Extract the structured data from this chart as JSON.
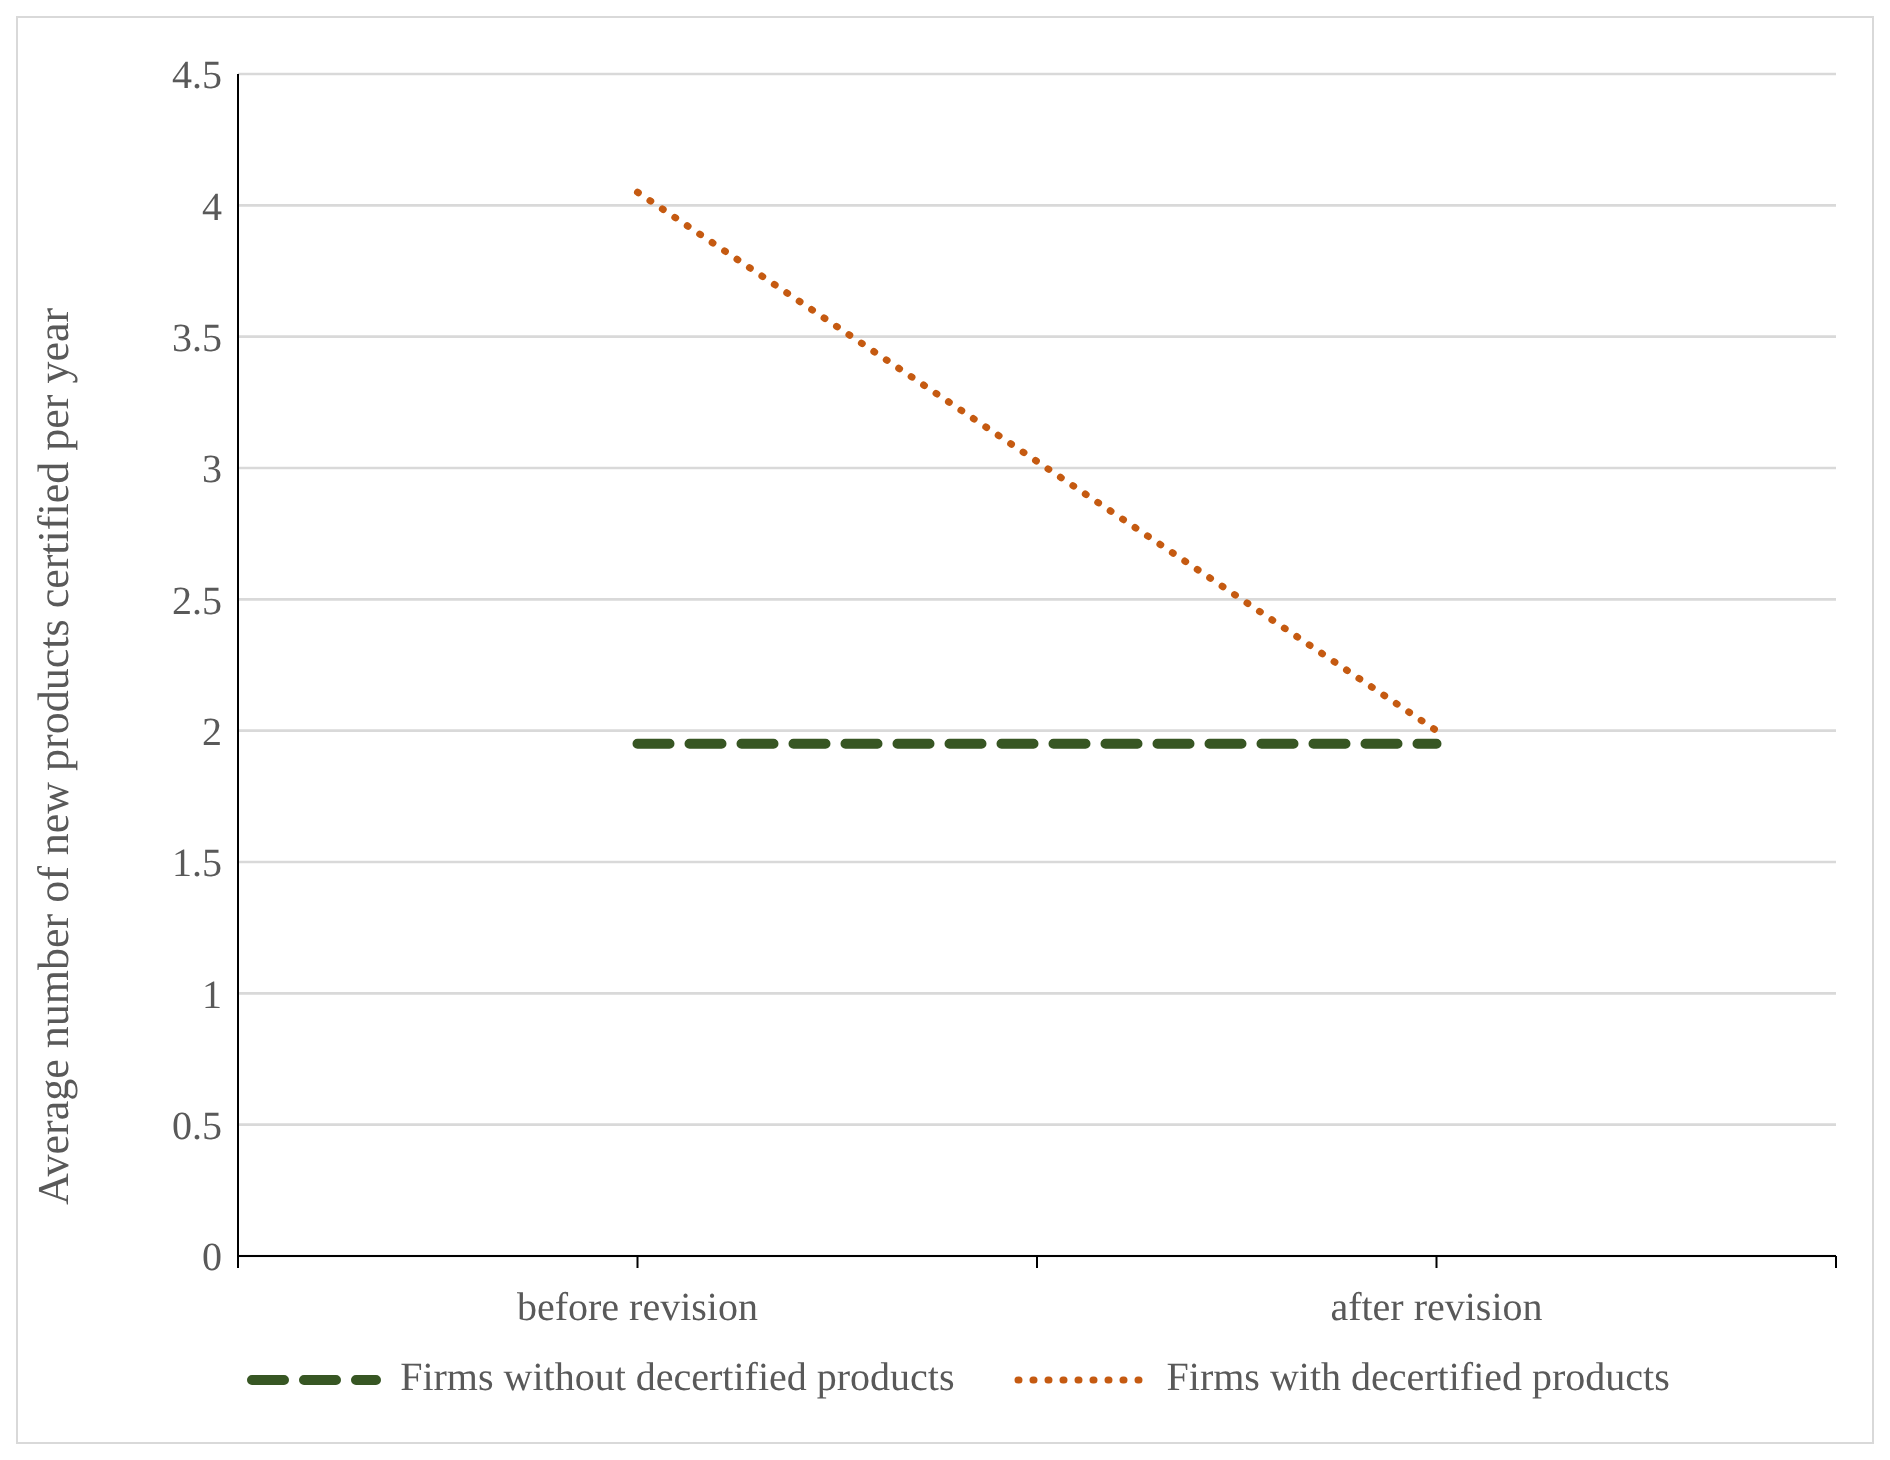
{
  "chart_data": {
    "type": "line",
    "ylabel": "Average number of new products certified per year",
    "categories": [
      null,
      "before revision",
      null,
      "after revision",
      null
    ],
    "series": [
      {
        "name": "Firms without decertified products",
        "color": "#375623",
        "line_style": "dashed",
        "values": [
          null,
          1.95,
          null,
          1.95,
          null
        ]
      },
      {
        "name": "Firms with decertified products",
        "color": "#c55a11",
        "line_style": "dotted",
        "values": [
          null,
          4.05,
          null,
          2.0,
          null
        ]
      }
    ],
    "ylim": [
      0,
      4.5
    ],
    "yticks": [
      0,
      0.5,
      1,
      1.5,
      2,
      2.5,
      3,
      3.5,
      4,
      4.5
    ],
    "grid": "y",
    "legend": "bottom",
    "marker": "none"
  }
}
